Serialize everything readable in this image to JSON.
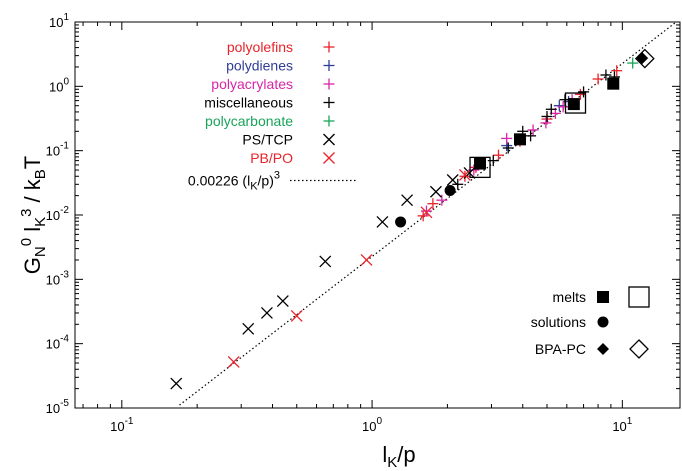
{
  "chart_data": {
    "type": "scatter",
    "xscale": "log",
    "yscale": "log",
    "xlim": [
      0.065,
      17
    ],
    "ylim": [
      1e-05,
      10
    ],
    "xlabel": {
      "main": "l",
      "sub": "K",
      "rest": "/p"
    },
    "ylabel": {
      "text": "G_N^0 l_K^3 / k_B T"
    },
    "x_ticks": [
      {
        "value": 0.1,
        "base": "10",
        "exp": "-1"
      },
      {
        "value": 1,
        "base": "10",
        "exp": "0"
      },
      {
        "value": 10,
        "base": "10",
        "exp": "1"
      }
    ],
    "y_ticks": [
      {
        "value": 1e-05,
        "base": "10",
        "exp": "-5"
      },
      {
        "value": 0.0001,
        "base": "10",
        "exp": "-4"
      },
      {
        "value": 0.001,
        "base": "10",
        "exp": "-3"
      },
      {
        "value": 0.01,
        "base": "10",
        "exp": "-2"
      },
      {
        "value": 0.1,
        "base": "10",
        "exp": "-1"
      },
      {
        "value": 1,
        "base": "10",
        "exp": "0"
      },
      {
        "value": 10,
        "base": "10",
        "exp": "1"
      }
    ],
    "series": [
      {
        "name": "polyolefins",
        "marker": "plus",
        "color": "#e8232a",
        "points": [
          [
            1.6,
            0.0097
          ],
          [
            1.75,
            0.015
          ],
          [
            2.35,
            0.04
          ],
          [
            2.6,
            0.055
          ],
          [
            3.2,
            0.085
          ],
          [
            3.9,
            0.14
          ],
          [
            5.0,
            0.31
          ],
          [
            6.8,
            0.75
          ],
          [
            8.0,
            1.3
          ],
          [
            9.5,
            1.75
          ]
        ]
      },
      {
        "name": "polydienes",
        "marker": "plus",
        "color": "#2f3d96",
        "points": [
          [
            3.45,
            0.12
          ],
          [
            5.6,
            0.5
          ],
          [
            6.1,
            0.58
          ]
        ]
      },
      {
        "name": "polyacrylates",
        "marker": "plus",
        "color": "#d925a8",
        "points": [
          [
            1.65,
            0.0115
          ],
          [
            1.9,
            0.017
          ],
          [
            2.55,
            0.05
          ],
          [
            3.45,
            0.155
          ],
          [
            4.4,
            0.21
          ],
          [
            4.95,
            0.27
          ],
          [
            5.4,
            0.38
          ],
          [
            5.8,
            0.48
          ],
          [
            6.3,
            0.62
          ]
        ]
      },
      {
        "name": "miscellaneous",
        "marker": "plus",
        "color": "#000000",
        "points": [
          [
            2.2,
            0.03
          ],
          [
            3.05,
            0.07
          ],
          [
            3.5,
            0.11
          ],
          [
            4.0,
            0.2
          ],
          [
            4.3,
            0.17
          ],
          [
            5.0,
            0.34
          ],
          [
            5.2,
            0.44
          ],
          [
            5.9,
            0.62
          ],
          [
            7.0,
            0.82
          ],
          [
            8.6,
            1.5
          ],
          [
            9.3,
            1.4
          ]
        ]
      },
      {
        "name": "polycarbonate",
        "marker": "plus",
        "color": "#1aa35a",
        "points": [
          [
            11.0,
            2.3
          ]
        ]
      },
      {
        "name": "PS/TCP",
        "marker": "cross",
        "color": "#000000",
        "points": [
          [
            0.165,
            2.4e-05
          ],
          [
            0.32,
            0.00017
          ],
          [
            0.38,
            0.0003
          ],
          [
            0.44,
            0.00046
          ],
          [
            0.65,
            0.0019
          ],
          [
            1.1,
            0.0078
          ],
          [
            1.38,
            0.017
          ],
          [
            1.8,
            0.023
          ],
          [
            2.1,
            0.035
          ],
          [
            2.45,
            0.045
          ]
        ]
      },
      {
        "name": "PB/PO",
        "marker": "cross",
        "color": "#e8232a",
        "points": [
          [
            0.28,
            5.2e-05
          ],
          [
            0.5,
            0.00027
          ],
          [
            0.95,
            0.002
          ],
          [
            1.65,
            0.011
          ],
          [
            2.35,
            0.042
          ]
        ]
      },
      {
        "name": "melts (filled)",
        "marker": "square-filled",
        "color": "#000000",
        "points": [
          [
            2.7,
            0.063
          ],
          [
            3.9,
            0.15
          ],
          [
            6.4,
            0.53
          ],
          [
            9.2,
            1.1
          ]
        ]
      },
      {
        "name": "melts (open)",
        "marker": "square-open",
        "color": "#000000",
        "points": [
          [
            2.7,
            0.055
          ],
          [
            6.5,
            0.55
          ]
        ]
      },
      {
        "name": "solutions",
        "marker": "circle-filled",
        "color": "#000000",
        "points": [
          [
            1.3,
            0.0078
          ],
          [
            2.05,
            0.024
          ]
        ]
      },
      {
        "name": "BPA-PC (filled)",
        "marker": "diamond-filled",
        "color": "#000000",
        "points": [
          [
            12.0,
            2.75
          ]
        ]
      },
      {
        "name": "BPA-PC (open)",
        "marker": "diamond-open",
        "color": "#000000",
        "points": [
          [
            12.3,
            2.7
          ]
        ]
      }
    ],
    "fit_line": {
      "coefficient": 0.00226,
      "exponent": 3,
      "x_range": [
        0.17,
        17
      ],
      "style": "dotted",
      "color": "#000000"
    },
    "legend": {
      "position": "top-left",
      "entries": [
        {
          "label": "polyolefins",
          "marker": "plus",
          "color": "#e8232a",
          "text_color": "#e8232a"
        },
        {
          "label": "polydienes",
          "marker": "plus",
          "color": "#2f3d96",
          "text_color": "#2f3d96"
        },
        {
          "label": "polyacrylates",
          "marker": "plus",
          "color": "#d925a8",
          "text_color": "#d925a8"
        },
        {
          "label": "miscellaneous",
          "marker": "plus",
          "color": "#000000",
          "text_color": "#000000"
        },
        {
          "label": "polycarbonate",
          "marker": "plus",
          "color": "#1aa35a",
          "text_color": "#1aa35a"
        },
        {
          "label": "PS/TCP",
          "marker": "cross",
          "color": "#000000",
          "text_color": "#000000"
        },
        {
          "label": "PB/PO",
          "marker": "cross",
          "color": "#e8232a",
          "text_color": "#e8232a"
        }
      ],
      "fit_label": {
        "prefix": "0.00226 (l",
        "sub": "K",
        "mid": "/p)",
        "sup": "3"
      }
    },
    "marker_legend": {
      "position": "bottom-right",
      "entries": [
        {
          "label": "melts",
          "filled": "square-filled",
          "open": "square-open"
        },
        {
          "label": "solutions",
          "filled": "circle-filled",
          "open": ""
        },
        {
          "label": "BPA-PC",
          "filled": "diamond-filled",
          "open": "diamond-open"
        }
      ]
    }
  }
}
